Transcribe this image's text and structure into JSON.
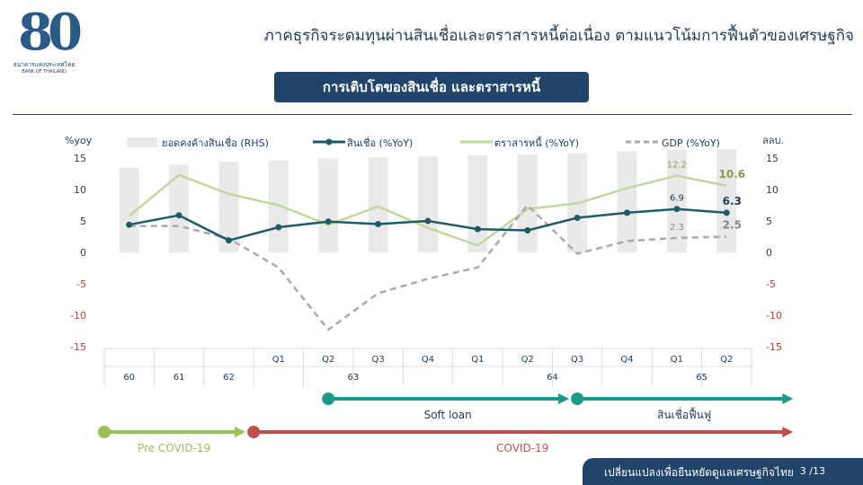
{
  "header": {
    "logo_numeral": "80",
    "logo_line1": "ธนาคารแห่งประเทศไทย",
    "logo_line2": "BANK OF THAILAND",
    "headline": "ภาคธุรกิจระดมทุนผ่านสินเชื่อและตราสารหนี้ต่อเนื่อง ตามแนวโน้มการฟื้นตัวของเศรษฐกิจ",
    "subtitle": "การเติบโตของสินเชื่อ และตราสารหนี้"
  },
  "footer": {
    "text": "เปลี่ยนแปลงเพื่อยืนหยัดดูแลเศรษฐกิจไทย",
    "page": "3 /13"
  },
  "colors": {
    "navy": "#21446a",
    "credit_line": "#1f5a68",
    "bond_line": "#c2d79b",
    "gdp_line": "#aaaaaa",
    "bars": "#e9e9e9",
    "negative_tick": "#c0392b",
    "soft_loan": "#1a9a8a",
    "pre_covid": "#9bbf57",
    "covid": "#c0504d"
  },
  "chart_data": {
    "type": "line",
    "left_axis_label": "%yoy",
    "right_axis_label": "ลลบ.",
    "yticks": [
      "15",
      "10",
      "5",
      "0",
      "-5",
      "-10",
      "-15"
    ],
    "ylim": [
      -15,
      15
    ],
    "legend": [
      "ยอดคงค้างสินเชื่อ (RHS)",
      "สินเชื่อ (%YoY)",
      "ตราสารหนี้ (%YoY)",
      "GDP (%YoY)"
    ],
    "categories": [
      "60",
      "61",
      "62",
      "63Q1",
      "63Q2",
      "63Q3",
      "63Q4",
      "64Q1",
      "64Q2",
      "64Q3",
      "64Q4",
      "65Q1",
      "65Q2"
    ],
    "quarter_labels": [
      "",
      "",
      "",
      "Q1",
      "Q2",
      "Q3",
      "Q4",
      "Q1",
      "Q2",
      "Q3",
      "Q4",
      "Q1",
      "Q2"
    ],
    "year_labels": [
      {
        "label": "60",
        "from": 0,
        "to": 0
      },
      {
        "label": "61",
        "from": 1,
        "to": 1
      },
      {
        "label": "62",
        "from": 2,
        "to": 2
      },
      {
        "label": "63",
        "from": 3,
        "to": 6
      },
      {
        "label": "64",
        "from": 7,
        "to": 10
      },
      {
        "label": "65",
        "from": 11,
        "to": 12
      }
    ],
    "bars_relative": [
      0.82,
      0.85,
      0.88,
      0.89,
      0.91,
      0.92,
      0.93,
      0.94,
      0.95,
      0.96,
      0.98,
      0.99,
      1.0
    ],
    "series": [
      {
        "name": "สินเชื่อ (%YoY)",
        "key": "credit",
        "values": [
          4.4,
          5.9,
          1.9,
          4.0,
          4.9,
          4.5,
          5.0,
          3.7,
          3.5,
          5.5,
          6.3,
          6.9,
          6.3
        ]
      },
      {
        "name": "ตราสารหนี้ (%YoY)",
        "key": "bond",
        "values": [
          5.8,
          12.3,
          9.3,
          7.5,
          4.4,
          7.3,
          3.9,
          1.1,
          6.9,
          7.8,
          10.2,
          12.2,
          10.6
        ]
      },
      {
        "name": "GDP (%YoY)",
        "key": "gdp",
        "values": [
          4.2,
          4.2,
          2.2,
          -2.4,
          -12.3,
          -6.5,
          -4.2,
          -2.4,
          7.5,
          -0.2,
          1.8,
          2.3,
          2.5
        ]
      }
    ],
    "data_labels": [
      {
        "series": "bond",
        "index": 11,
        "text": "12.2",
        "bold": false
      },
      {
        "series": "bond",
        "index": 12,
        "text": "10.6",
        "bold": true
      },
      {
        "series": "credit",
        "index": 11,
        "text": "6.9",
        "bold": false
      },
      {
        "series": "credit",
        "index": 12,
        "text": "6.3",
        "bold": true
      },
      {
        "series": "gdp",
        "index": 11,
        "text": "2.3",
        "bold": false
      },
      {
        "series": "gdp",
        "index": 12,
        "text": "2.5",
        "bold": true
      }
    ],
    "timeline": [
      {
        "label": "Soft loan",
        "from": 4,
        "to": 8.8,
        "color_key": "soft_loan",
        "row": 0
      },
      {
        "label": "สินเชื่อฟื้นฟู",
        "from": 9,
        "to": 13.3,
        "color_key": "soft_loan",
        "row": 0
      },
      {
        "label": "Pre COVID-19",
        "from": -0.5,
        "to": 2.3,
        "color_key": "pre_covid",
        "row": 1
      },
      {
        "label": "COVID-19",
        "from": 2.5,
        "to": 13.3,
        "color_key": "covid",
        "row": 1
      }
    ]
  }
}
